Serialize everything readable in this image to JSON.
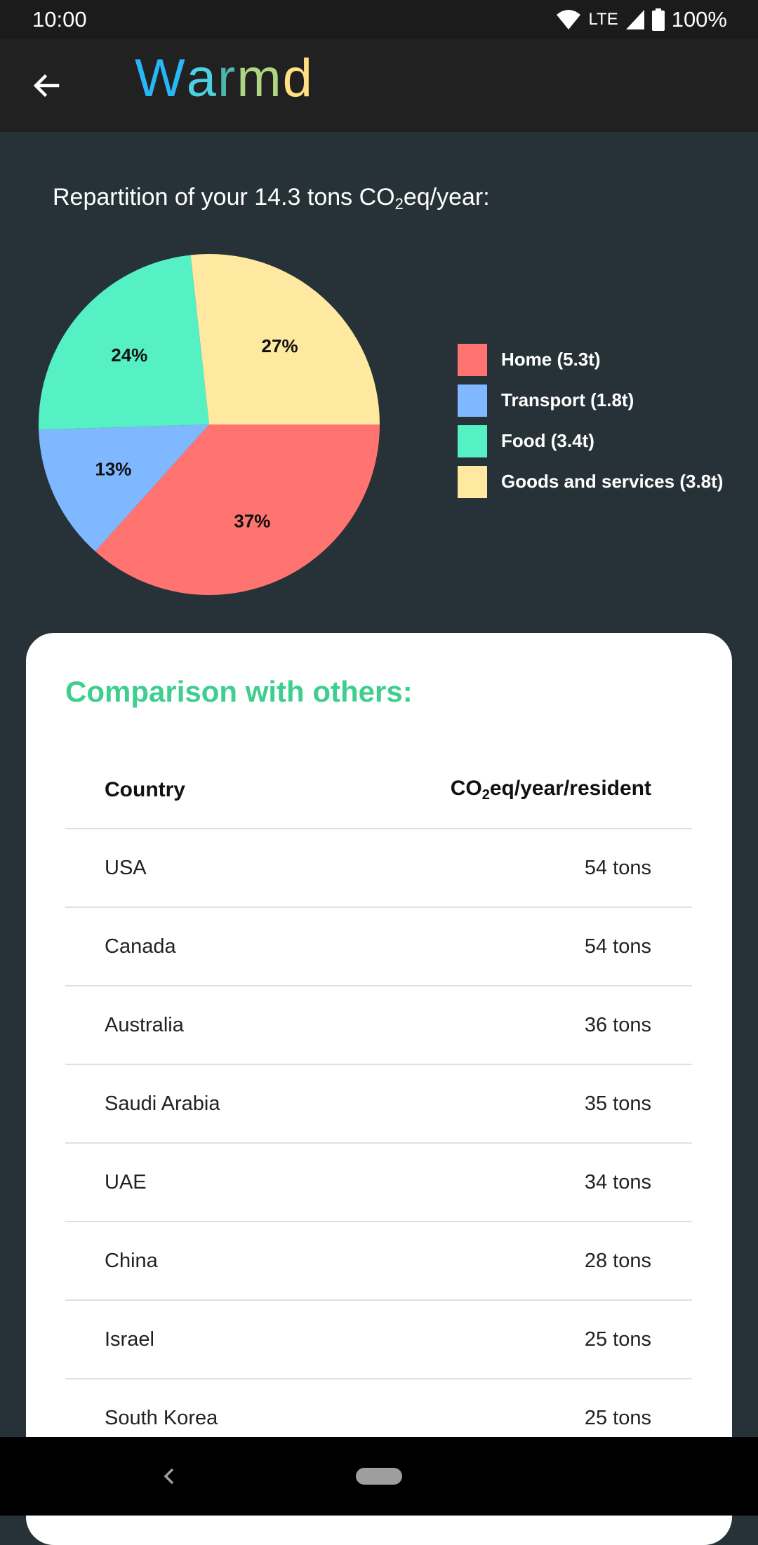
{
  "status_bar": {
    "time": "10:00",
    "network": "LTE",
    "battery": "100%"
  },
  "app_bar": {
    "back_icon": "arrow-back-icon",
    "title_letters": [
      {
        "char": "W",
        "color": "#29b6f6"
      },
      {
        "char": "a",
        "color": "#4dd0e1"
      },
      {
        "char": "r",
        "color": "#4db6ac"
      },
      {
        "char": "m",
        "color": "#aed581"
      },
      {
        "char": "d",
        "color": "#ffe082"
      }
    ]
  },
  "repartition": {
    "title_before": "Repartition of your 14.3 tons CO",
    "title_sub": "2",
    "title_after": "eq/year:"
  },
  "chart_data": {
    "type": "pie",
    "slices": [
      {
        "label": "Home (5.3t)",
        "percent": 37,
        "percent_label": "37%",
        "color": "#ff7470"
      },
      {
        "label": "Transport (1.8t)",
        "percent": 13,
        "percent_label": "13%",
        "color": "#7fb8ff"
      },
      {
        "label": "Food (3.4t)",
        "percent": 24,
        "percent_label": "24%",
        "color": "#55f0c3"
      },
      {
        "label": "Goods and services (3.8t)",
        "percent": 27,
        "percent_label": "27%",
        "color": "#ffe8a0"
      }
    ],
    "legend_position": "right"
  },
  "comparison": {
    "title": "Comparison with others:",
    "header_country": "Country",
    "header_value_before": "CO",
    "header_value_sub": "2",
    "header_value_after": "eq/year/resident",
    "rows": [
      {
        "country": "USA",
        "value": "54 tons"
      },
      {
        "country": "Canada",
        "value": "54 tons"
      },
      {
        "country": "Australia",
        "value": "36 tons"
      },
      {
        "country": "Saudi Arabia",
        "value": "35 tons"
      },
      {
        "country": "UAE",
        "value": "34 tons"
      },
      {
        "country": "China",
        "value": "28 tons"
      },
      {
        "country": "Israel",
        "value": "25 tons"
      },
      {
        "country": "South Korea",
        "value": "25 tons"
      }
    ]
  },
  "nav_bar": {
    "back_icon": "nav-back-icon",
    "home_icon": "nav-home-pill-icon"
  }
}
